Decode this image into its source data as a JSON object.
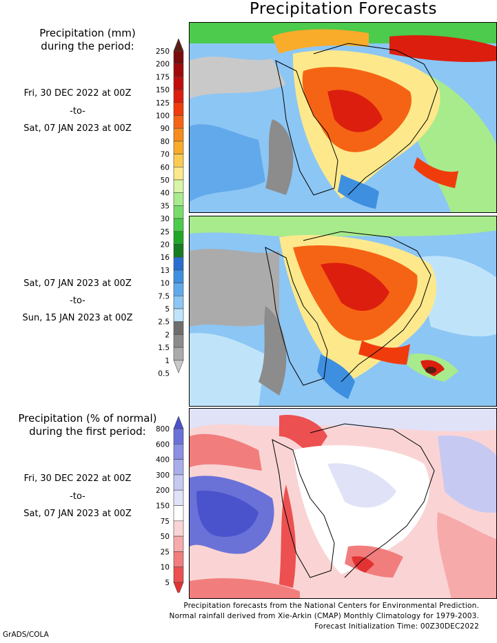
{
  "title": "Precipitation Forecasts",
  "panel_amount": {
    "heading_line1": "Precipitation (mm)",
    "heading_line2": "during the period:",
    "period1": {
      "from": "Fri, 30 DEC 2022 at 00Z",
      "to": "-to-",
      "until": "Sat, 07 JAN 2023 at 00Z"
    },
    "period2": {
      "from": "Sat, 07 JAN 2023 at 00Z",
      "to": "-to-",
      "until": "Sun, 15 JAN 2023 at 00Z"
    },
    "colorbar": {
      "labels": [
        "250",
        "200",
        "175",
        "150",
        "125",
        "100",
        "90",
        "80",
        "70",
        "60",
        "50",
        "40",
        "35",
        "30",
        "25",
        "20",
        "16",
        "13",
        "10",
        "7.5",
        "5",
        "2.5",
        "2",
        "1.5",
        "1",
        "0.5"
      ],
      "colors": [
        "#5a1e14",
        "#7a0c0c",
        "#a00a0a",
        "#c00e0e",
        "#dc1e0e",
        "#f03c0c",
        "#f56414",
        "#f78c1c",
        "#f9ab2a",
        "#fbcb52",
        "#fde98c",
        "#d8f5a8",
        "#a8eb8c",
        "#78dc6c",
        "#4ccb4c",
        "#22a62a",
        "#167c22",
        "#2a6ed0",
        "#3f8fe0",
        "#62a9ec",
        "#8cc6f4",
        "#bfe4fa",
        "#6e6e6e",
        "#8c8c8c",
        "#ababab",
        "#c9c9c9"
      ]
    }
  },
  "panel_percent": {
    "heading_line1": "Precipitation (% of normal)",
    "heading_line2": "during the first period:",
    "period": {
      "from": "Fri, 30 DEC 2022 at 00Z",
      "to": "-to-",
      "until": "Sat, 07 JAN 2023 at 00Z"
    },
    "colorbar": {
      "labels": [
        "800",
        "600",
        "400",
        "300",
        "200",
        "150",
        "75",
        "50",
        "25",
        "10",
        "5"
      ],
      "colors": [
        "#4a52cc",
        "#6a72d8",
        "#8a90e2",
        "#a9aeea",
        "#c6c9f2",
        "#e0e2f8",
        "#ffffff",
        "#fad4d4",
        "#f7aaaa",
        "#f27d7d",
        "#ec5050",
        "#e23232"
      ]
    }
  },
  "footer": {
    "line1": "Precipitation forecasts from the National Centers for Environmental Prediction.",
    "line2": "Normal rainfall derived from Xie-Arkin (CMAP) Monthly Climatology for 1979-2003.",
    "line3": "Forecast Initialization Time: 00Z30DEC2022"
  },
  "credit": "GrADS/COLA"
}
